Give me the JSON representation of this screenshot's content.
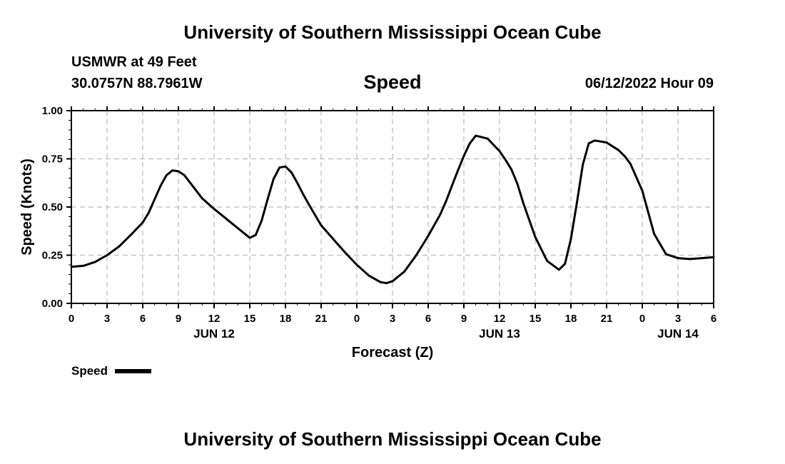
{
  "header": {
    "title": "University of Southern Mississippi Ocean Cube",
    "station": "USMWR at 49 Feet",
    "coords": "30.0757N  88.7961W",
    "chart_title": "Speed",
    "datetime": "06/12/2022 Hour 09"
  },
  "footer": {
    "title": "University of Southern Mississippi Ocean Cube"
  },
  "colors": {
    "line": "#000000",
    "grid": "#bbbbbb"
  },
  "chart_data": {
    "type": "line",
    "title": "Speed",
    "xlabel": "Forecast (Z)",
    "ylabel": "Speed (Knots)",
    "xlim": [
      0,
      54
    ],
    "ylim": [
      0,
      1
    ],
    "x_unit": "hours since Jun 12 00Z",
    "xticks": [
      0,
      3,
      6,
      9,
      12,
      15,
      18,
      21,
      24,
      27,
      30,
      33,
      36,
      39,
      42,
      45,
      48,
      51,
      54
    ],
    "xtick_labels": [
      "0",
      "3",
      "6",
      "9",
      "12",
      "15",
      "18",
      "21",
      "0",
      "3",
      "6",
      "9",
      "12",
      "15",
      "18",
      "21",
      "0",
      "3",
      "6"
    ],
    "yticks": [
      0,
      0.25,
      0.5,
      0.75,
      1
    ],
    "ytick_labels": [
      "0.00",
      "0.25",
      "0.50",
      "0.75",
      "1.00"
    ],
    "date_labels": [
      {
        "x": 12,
        "label": "JUN 12"
      },
      {
        "x": 36,
        "label": "JUN 13"
      },
      {
        "x": 51,
        "label": "JUN 14"
      }
    ],
    "grid": true,
    "legend": {
      "label": "Speed",
      "placement": "bottom-left"
    },
    "series": [
      {
        "name": "Speed",
        "x": [
          0,
          1,
          2,
          3,
          4,
          5,
          6,
          6.5,
          7,
          7.5,
          8,
          8.5,
          9,
          9.5,
          10,
          10.5,
          11,
          12,
          13,
          14,
          15,
          15.5,
          16,
          16.5,
          17,
          17.5,
          18,
          18.5,
          19,
          19.5,
          20,
          21,
          22,
          23,
          24,
          25,
          26,
          26.5,
          27,
          28,
          29,
          30,
          31,
          31.5,
          32,
          32.5,
          33,
          33.5,
          34,
          35,
          36,
          36.5,
          37,
          37.5,
          38,
          39,
          40,
          41,
          41.5,
          42,
          42.5,
          43,
          43.5,
          44,
          45,
          46,
          46.5,
          47,
          48,
          49,
          50,
          51,
          52,
          53,
          54
        ],
        "y": [
          0.19,
          0.195,
          0.215,
          0.25,
          0.295,
          0.355,
          0.42,
          0.47,
          0.54,
          0.61,
          0.665,
          0.69,
          0.685,
          0.665,
          0.625,
          0.585,
          0.545,
          0.49,
          0.44,
          0.39,
          0.34,
          0.355,
          0.43,
          0.54,
          0.645,
          0.705,
          0.71,
          0.68,
          0.625,
          0.565,
          0.51,
          0.405,
          0.335,
          0.265,
          0.2,
          0.145,
          0.11,
          0.105,
          0.115,
          0.165,
          0.25,
          0.35,
          0.46,
          0.53,
          0.61,
          0.69,
          0.765,
          0.83,
          0.87,
          0.855,
          0.79,
          0.745,
          0.695,
          0.62,
          0.52,
          0.345,
          0.22,
          0.175,
          0.205,
          0.335,
          0.52,
          0.72,
          0.83,
          0.845,
          0.835,
          0.795,
          0.765,
          0.725,
          0.585,
          0.36,
          0.255,
          0.235,
          0.23,
          0.235,
          0.24
        ]
      }
    ]
  }
}
